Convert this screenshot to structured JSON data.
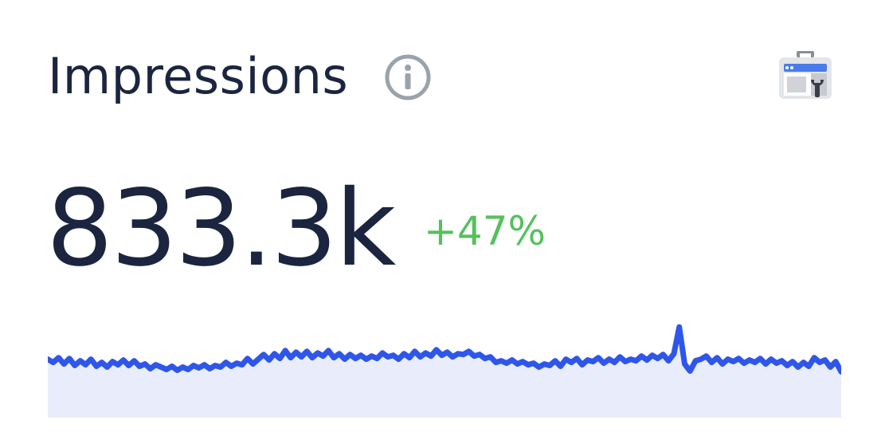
{
  "card": {
    "title": "Impressions",
    "value": "833.3k",
    "change": "+47%",
    "info_icon": "info-icon",
    "source_icon": "search-console-icon"
  },
  "colors": {
    "text": "#1b2540",
    "positive": "#55c05e",
    "line": "#2f56ea",
    "fill": "#e9edfb",
    "icon_gray": "#9aa2ad"
  },
  "chart_data": {
    "type": "area",
    "title": "",
    "xlabel": "",
    "ylabel": "",
    "grid": false,
    "legend": "none",
    "ylim": [
      0,
      10
    ],
    "values": [
      5.0,
      4.6,
      5.2,
      4.4,
      5.1,
      4.2,
      4.8,
      4.3,
      5.0,
      4.1,
      4.6,
      4.0,
      4.7,
      4.3,
      4.9,
      4.2,
      4.8,
      4.1,
      4.4,
      3.8,
      4.3,
      4.0,
      3.7,
      4.1,
      3.6,
      4.0,
      3.7,
      4.2,
      3.9,
      4.3,
      3.8,
      4.2,
      4.0,
      4.6,
      4.1,
      4.5,
      4.3,
      5.1,
      4.4,
      5.0,
      5.6,
      4.9,
      5.7,
      5.1,
      6.1,
      5.2,
      5.9,
      5.3,
      6.0,
      5.2,
      5.8,
      5.4,
      6.1,
      5.2,
      5.7,
      5.0,
      5.6,
      5.1,
      5.5,
      5.0,
      5.4,
      5.1,
      5.8,
      5.3,
      5.5,
      5.0,
      5.7,
      5.2,
      6.0,
      5.3,
      5.8,
      5.4,
      6.2,
      5.5,
      5.9,
      5.3,
      5.7,
      5.6,
      6.0,
      5.4,
      5.6,
      5.1,
      5.3,
      4.6,
      4.8,
      4.5,
      4.9,
      4.4,
      4.7,
      4.3,
      4.5,
      4.0,
      4.4,
      4.2,
      4.8,
      4.1,
      5.0,
      4.6,
      5.1,
      4.3,
      4.9,
      4.7,
      5.2,
      4.5,
      5.0,
      4.6,
      5.3,
      4.7,
      5.0,
      4.8,
      5.4,
      4.9,
      5.5,
      5.1,
      5.6,
      4.8,
      5.7,
      9.1,
      4.4,
      3.5,
      4.8,
      5.0,
      5.4,
      4.6,
      5.2,
      4.4,
      5.0,
      4.7,
      5.1,
      4.5,
      4.9,
      4.6,
      5.1,
      4.4,
      5.0,
      4.5,
      4.8,
      4.2,
      4.7,
      4.0,
      4.6,
      4.1,
      5.2,
      4.6,
      4.9,
      4.0,
      4.7,
      3.4
    ]
  }
}
